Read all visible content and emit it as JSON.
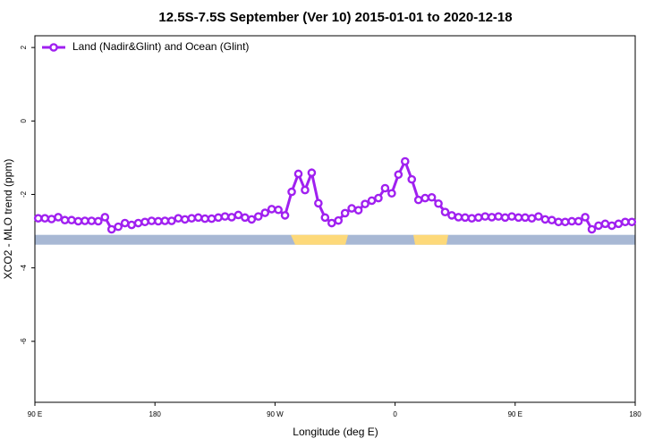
{
  "chart_data": {
    "type": "line",
    "title": "12.5S-7.5S September (Ver 10)   2015-01-01 to 2020-12-18",
    "x_label": "Longitude (deg E)",
    "y_label": "XCO2 - MLO trend (ppm)",
    "xlim": [
      90,
      540
    ],
    "xticks": [
      {
        "value": 90,
        "label": "90 E"
      },
      180,
      {
        "value": 270,
        "label": "90 W"
      },
      {
        "value": 360,
        "label": "0"
      },
      {
        "value": 450,
        "label": "90 E"
      },
      {
        "value": 540,
        "label": "180"
      }
    ],
    "ylim": [
      -7.66,
      2.32
    ],
    "yticks": [
      2,
      0,
      -2,
      -4,
      -6
    ],
    "legend": "top-left",
    "x": [
      92.5,
      97.5,
      102.5,
      107.5,
      112.5,
      117.5,
      122.5,
      127.5,
      132.5,
      137.5,
      142.5,
      147.5,
      152.5,
      157.5,
      162.5,
      167.5,
      172.5,
      177.5,
      182.5,
      187.5,
      192.5,
      197.5,
      202.5,
      207.5,
      212.5,
      217.5,
      222.5,
      227.5,
      232.5,
      237.5,
      242.5,
      247.5,
      252.5,
      257.5,
      262.5,
      267.5,
      272.5,
      277.5,
      282.5,
      287.5,
      292.5,
      297.5,
      302.5,
      307.5,
      312.5,
      317.5,
      322.5,
      327.5,
      332.5,
      337.5,
      342.5,
      347.5,
      352.5,
      357.5,
      362.5,
      367.5,
      372.5,
      377.5,
      382.5,
      387.5,
      392.5,
      397.5,
      402.5,
      407.5,
      412.5,
      417.5,
      422.5,
      427.5,
      432.5,
      437.5,
      442.5,
      447.5,
      452.5,
      457.5,
      462.5,
      467.5,
      472.5,
      477.5,
      482.5,
      487.5,
      492.5,
      497.5,
      502.5,
      507.5,
      512.5,
      517.5,
      522.5,
      527.5,
      532.5,
      537.5
    ],
    "series": [
      {
        "name": "Land (Nadir&Glint) and Ocean (Glint)",
        "color": "#a020f0",
        "values": [
          -2.65,
          -2.65,
          -2.67,
          -2.62,
          -2.7,
          -2.7,
          -2.73,
          -2.72,
          -2.72,
          -2.73,
          -2.62,
          -2.95,
          -2.88,
          -2.78,
          -2.83,
          -2.78,
          -2.75,
          -2.72,
          -2.73,
          -2.72,
          -2.72,
          -2.65,
          -2.68,
          -2.65,
          -2.63,
          -2.66,
          -2.66,
          -2.63,
          -2.6,
          -2.62,
          -2.56,
          -2.63,
          -2.68,
          -2.6,
          -2.5,
          -2.4,
          -2.42,
          -2.57,
          -1.93,
          -1.44,
          -1.88,
          -1.41,
          -2.24,
          -2.63,
          -2.78,
          -2.71,
          -2.51,
          -2.38,
          -2.43,
          -2.26,
          -2.17,
          -2.1,
          -1.83,
          -1.97,
          -1.46,
          -1.1,
          -1.59,
          -2.15,
          -2.1,
          -2.08,
          -2.25,
          -2.48,
          -2.57,
          -2.62,
          -2.63,
          -2.65,
          -2.63,
          -2.6,
          -2.62,
          -2.6,
          -2.63,
          -2.6,
          -2.63,
          -2.63,
          -2.65,
          -2.6,
          -2.68,
          -2.7,
          -2.75,
          -2.75,
          -2.73,
          -2.73,
          -2.62,
          -2.95,
          -2.85,
          -2.8,
          -2.85,
          -2.8,
          -2.75,
          -2.75
        ]
      }
    ]
  }
}
